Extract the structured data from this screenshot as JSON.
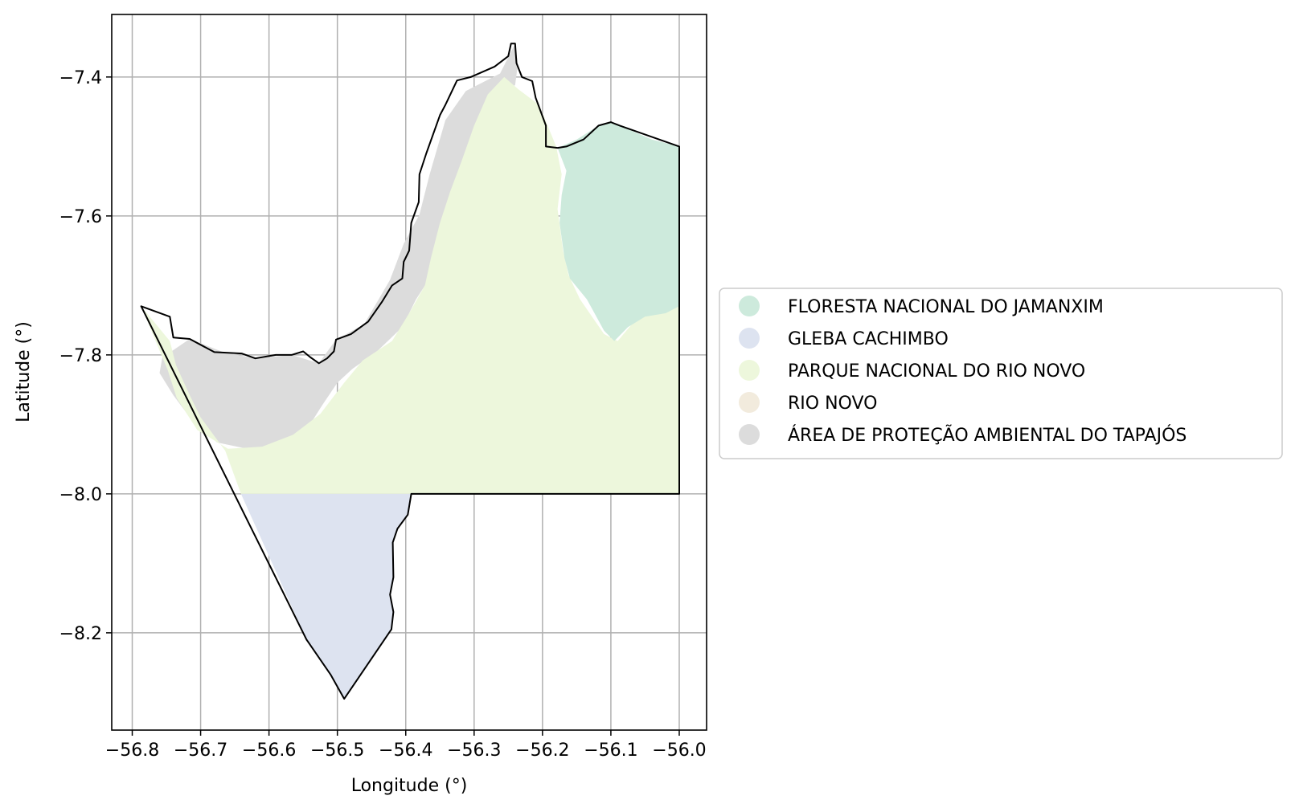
{
  "map": {
    "xlabel": "Longitude (°)",
    "ylabel": "Latitude (°)",
    "xlim": [
      -56.83,
      -55.96
    ],
    "ylim": [
      -8.34,
      -7.31
    ],
    "x_ticks": [
      -56.8,
      -56.7,
      -56.6,
      -56.5,
      -56.4,
      -56.3,
      -56.2,
      -56.1,
      -56.0
    ],
    "x_tick_labels": [
      "−56.8",
      "−56.7",
      "−56.6",
      "−56.5",
      "−56.4",
      "−56.3",
      "−56.2",
      "−56.1",
      "−56.0"
    ],
    "y_ticks": [
      -7.4,
      -7.6,
      -7.8,
      -8.0,
      -8.2
    ],
    "y_tick_labels": [
      "−7.4",
      "−7.6",
      "−7.8",
      "−8.0",
      "−8.2"
    ],
    "grid": true,
    "legend_placement": "center-right outside"
  },
  "legend": [
    {
      "label": "FLORESTA NACIONAL DO JAMANXIM",
      "color": "#cdeadc"
    },
    {
      "label": "GLEBA CACHIMBO",
      "color": "#dde3f0"
    },
    {
      "label": "PARQUE NACIONAL DO RIO NOVO",
      "color": "#edf7dc"
    },
    {
      "label": "RIO NOVO",
      "color": "#f2ebdd"
    },
    {
      "label": "ÁREA DE PROTEÇÃO AMBIENTAL DO TAPAJÓS",
      "color": "#dcdcdc"
    }
  ],
  "chart_data": {
    "type": "map",
    "xlabel": "Longitude (°)",
    "ylabel": "Latitude (°)",
    "xlim": [
      -56.83,
      -55.96
    ],
    "ylim": [
      -8.34,
      -7.31
    ],
    "grid": true,
    "regions": [
      {
        "name": "ÁREA DE PROTEÇÃO AMBIENTAL DO TAPAJÓS",
        "color": "#dcdcdc",
        "polygons": [
          [
            [
              -56.756,
              -7.804
            ],
            [
              -56.716,
              -7.777
            ],
            [
              -56.667,
              -7.796
            ],
            [
              -56.62,
              -7.805
            ],
            [
              -56.567,
              -7.8
            ],
            [
              -56.527,
              -7.812
            ],
            [
              -56.502,
              -7.778
            ],
            [
              -56.461,
              -7.756
            ],
            [
              -56.423,
              -7.692
            ],
            [
              -56.403,
              -7.64
            ],
            [
              -56.38,
              -7.598
            ],
            [
              -56.365,
              -7.54
            ],
            [
              -56.342,
              -7.462
            ],
            [
              -56.312,
              -7.42
            ],
            [
              -56.262,
              -7.395
            ],
            [
              -56.24,
              -7.352
            ],
            [
              -56.236,
              -7.382
            ],
            [
              -56.24,
              -7.412
            ],
            [
              -56.26,
              -7.415
            ],
            [
              -56.28,
              -7.43
            ],
            [
              -56.295,
              -7.475
            ],
            [
              -56.305,
              -7.51
            ],
            [
              -56.322,
              -7.56
            ],
            [
              -56.338,
              -7.6
            ],
            [
              -56.35,
              -7.64
            ],
            [
              -56.362,
              -7.685
            ],
            [
              -56.385,
              -7.72
            ],
            [
              -56.405,
              -7.76
            ],
            [
              -56.442,
              -7.795
            ],
            [
              -56.478,
              -7.82
            ],
            [
              -56.5,
              -7.84
            ],
            [
              -56.522,
              -7.872
            ],
            [
              -56.545,
              -7.908
            ],
            [
              -56.58,
              -7.932
            ],
            [
              -56.632,
              -7.935
            ],
            [
              -56.676,
              -7.926
            ],
            [
              -56.712,
              -7.895
            ],
            [
              -56.74,
              -7.858
            ],
            [
              -56.76,
              -7.826
            ]
          ]
        ]
      },
      {
        "name": "PARQUE NACIONAL DO RIO NOVO",
        "color": "#edf7dc",
        "polygons": [
          [
            [
              -56.787,
              -7.73
            ],
            [
              -56.745,
              -7.78
            ],
            [
              -56.736,
              -7.815
            ],
            [
              -56.716,
              -7.858
            ],
            [
              -56.7,
              -7.89
            ],
            [
              -56.664,
              -7.938
            ],
            [
              -56.641,
              -8.0
            ],
            [
              -56.0,
              -8.0
            ],
            [
              -56.0,
              -7.725
            ],
            [
              -56.03,
              -7.735
            ],
            [
              -56.06,
              -7.745
            ],
            [
              -56.09,
              -7.78
            ],
            [
              -56.11,
              -7.77
            ],
            [
              -56.145,
              -7.72
            ],
            [
              -56.162,
              -7.685
            ],
            [
              -56.17,
              -7.65
            ],
            [
              -56.178,
              -7.59
            ],
            [
              -56.172,
              -7.54
            ],
            [
              -56.18,
              -7.5
            ],
            [
              -56.205,
              -7.44
            ],
            [
              -56.235,
              -7.418
            ],
            [
              -56.256,
              -7.4
            ],
            [
              -56.28,
              -7.425
            ],
            [
              -56.3,
              -7.47
            ],
            [
              -56.318,
              -7.52
            ],
            [
              -56.335,
              -7.565
            ],
            [
              -56.35,
              -7.61
            ],
            [
              -56.363,
              -7.66
            ],
            [
              -56.372,
              -7.7
            ],
            [
              -56.395,
              -7.74
            ],
            [
              -56.42,
              -7.78
            ],
            [
              -56.463,
              -7.808
            ],
            [
              -56.49,
              -7.84
            ],
            [
              -56.525,
              -7.885
            ],
            [
              -56.565,
              -7.915
            ],
            [
              -56.61,
              -7.932
            ],
            [
              -56.66,
              -7.935
            ],
            [
              -56.705,
              -7.908
            ],
            [
              -56.735,
              -7.862
            ],
            [
              -56.748,
              -7.822
            ]
          ]
        ]
      },
      {
        "name": "FLORESTA NACIONAL DO JAMANXIM",
        "color": "#cdeadc",
        "polygons": [
          [
            [
              -56.0,
              -7.5
            ],
            [
              -56.04,
              -7.49
            ],
            [
              -56.087,
              -7.47
            ],
            [
              -56.1,
              -7.465
            ],
            [
              -56.118,
              -7.47
            ],
            [
              -56.15,
              -7.49
            ],
            [
              -56.178,
              -7.502
            ],
            [
              -56.165,
              -7.535
            ],
            [
              -56.172,
              -7.57
            ],
            [
              -56.175,
              -7.61
            ],
            [
              -56.168,
              -7.66
            ],
            [
              -56.16,
              -7.69
            ],
            [
              -56.135,
              -7.72
            ],
            [
              -56.11,
              -7.765
            ],
            [
              -56.095,
              -7.78
            ],
            [
              -56.075,
              -7.76
            ],
            [
              -56.05,
              -7.745
            ],
            [
              -56.02,
              -7.74
            ],
            [
              -56.0,
              -7.73
            ]
          ]
        ]
      },
      {
        "name": "GLEBA CACHIMBO",
        "color": "#dde3f0",
        "polygons": [
          [
            [
              -56.641,
              -8.0
            ],
            [
              -56.392,
              -8.0
            ],
            [
              -56.397,
              -8.03
            ],
            [
              -56.412,
              -8.05
            ],
            [
              -56.419,
              -8.07
            ],
            [
              -56.418,
              -8.12
            ],
            [
              -56.423,
              -8.145
            ],
            [
              -56.418,
              -8.17
            ],
            [
              -56.421,
              -8.195
            ],
            [
              -56.49,
              -8.295
            ],
            [
              -56.51,
              -8.26
            ],
            [
              -56.545,
              -8.21
            ]
          ]
        ]
      }
    ],
    "outline": [
      [
        -56.787,
        -7.73
      ],
      [
        -56.745,
        -7.745
      ],
      [
        -56.74,
        -7.775
      ],
      [
        -56.716,
        -7.777
      ],
      [
        -56.68,
        -7.796
      ],
      [
        -56.64,
        -7.798
      ],
      [
        -56.62,
        -7.805
      ],
      [
        -56.59,
        -7.8
      ],
      [
        -56.567,
        -7.8
      ],
      [
        -56.55,
        -7.795
      ],
      [
        -56.54,
        -7.803
      ],
      [
        -56.527,
        -7.812
      ],
      [
        -56.515,
        -7.805
      ],
      [
        -56.505,
        -7.795
      ],
      [
        -56.502,
        -7.778
      ],
      [
        -56.48,
        -7.77
      ],
      [
        -56.455,
        -7.752
      ],
      [
        -56.435,
        -7.724
      ],
      [
        -56.42,
        -7.7
      ],
      [
        -56.405,
        -7.69
      ],
      [
        -56.403,
        -7.666
      ],
      [
        -56.395,
        -7.65
      ],
      [
        -56.392,
        -7.61
      ],
      [
        -56.381,
        -7.58
      ],
      [
        -56.38,
        -7.54
      ],
      [
        -56.37,
        -7.51
      ],
      [
        -56.35,
        -7.455
      ],
      [
        -56.342,
        -7.44
      ],
      [
        -56.325,
        -7.405
      ],
      [
        -56.305,
        -7.4
      ],
      [
        -56.27,
        -7.385
      ],
      [
        -56.25,
        -7.37
      ],
      [
        -56.246,
        -7.352
      ],
      [
        -56.24,
        -7.352
      ],
      [
        -56.238,
        -7.38
      ],
      [
        -56.23,
        -7.4
      ],
      [
        -56.215,
        -7.406
      ],
      [
        -56.21,
        -7.43
      ],
      [
        -56.195,
        -7.47
      ],
      [
        -56.195,
        -7.5
      ],
      [
        -56.178,
        -7.502
      ],
      [
        -56.165,
        -7.5
      ],
      [
        -56.14,
        -7.49
      ],
      [
        -56.118,
        -7.47
      ],
      [
        -56.1,
        -7.465
      ],
      [
        -56.087,
        -7.47
      ],
      [
        -56.0,
        -7.5
      ],
      [
        -56.0,
        -8.0
      ],
      [
        -56.392,
        -8.0
      ],
      [
        -56.397,
        -8.03
      ],
      [
        -56.412,
        -8.05
      ],
      [
        -56.419,
        -8.07
      ],
      [
        -56.418,
        -8.12
      ],
      [
        -56.423,
        -8.145
      ],
      [
        -56.418,
        -8.17
      ],
      [
        -56.421,
        -8.195
      ],
      [
        -56.49,
        -8.295
      ],
      [
        -56.51,
        -8.26
      ],
      [
        -56.545,
        -8.21
      ],
      [
        -56.787,
        -7.73
      ]
    ]
  }
}
